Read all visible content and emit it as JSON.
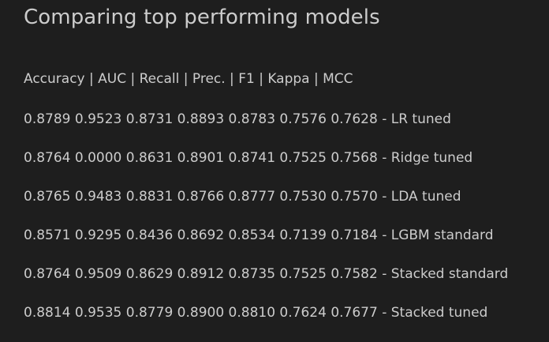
{
  "title": "Comparing top performing models",
  "metrics_header": "Accuracy | AUC | Recall | Prec. | F1 | Kappa | MCC",
  "rows": [
    "0.8789 0.9523 0.8731 0.8893 0.8783 0.7576 0.7628 - LR tuned",
    "0.8764 0.0000 0.8631 0.8901 0.8741 0.7525 0.7568 - Ridge tuned",
    "0.8765 0.9483 0.8831 0.8766 0.8777 0.7530 0.7570 - LDA tuned",
    "0.8571 0.9295 0.8436 0.8692 0.8534 0.7139 0.7184 - LGBM standard",
    "0.8764 0.9509 0.8629 0.8912 0.8735 0.7525 0.7582 - Stacked standard",
    "0.8814 0.9535 0.8779 0.8900 0.8810 0.7624 0.7677 - Stacked tuned"
  ],
  "colors": {
    "background": "#1e1e1e",
    "text": "#cccccc"
  }
}
